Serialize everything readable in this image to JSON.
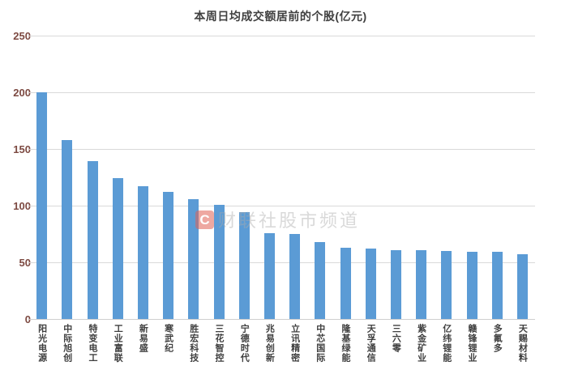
{
  "chart_data": {
    "type": "bar",
    "title": "本周日均成交额居前的个股(亿元)",
    "categories": [
      "阳光电源",
      "中际旭创",
      "特变电工",
      "工业富联",
      "新易盛",
      "寒武纪",
      "胜宏科技",
      "三花智控",
      "宁德时代",
      "兆易创新",
      "立讯精密",
      "中芯国际",
      "隆基绿能",
      "天孚通信",
      "三六零",
      "紫金矿业",
      "亿纬锂能",
      "赣锋锂业",
      "多氟多",
      "天赐材料"
    ],
    "values": [
      200,
      158,
      139,
      124,
      117,
      112,
      106,
      101,
      94,
      76,
      75,
      68,
      63,
      62,
      61,
      61,
      60,
      59,
      59,
      57
    ],
    "xlabel": "",
    "ylabel": "",
    "ylim": [
      0,
      250
    ],
    "yticks": [
      0,
      50,
      100,
      150,
      200,
      250
    ],
    "grid": "horizontal",
    "legend_position": "none",
    "bar_color": "#5B9BD5",
    "gridline_color": "#D9D9D9",
    "title_color": "#404040",
    "ytick_color": "#7D4A42",
    "xtick_color": "#3F3F3F"
  },
  "watermark": {
    "logo_letter": "C",
    "text": "财联社股市频道"
  }
}
